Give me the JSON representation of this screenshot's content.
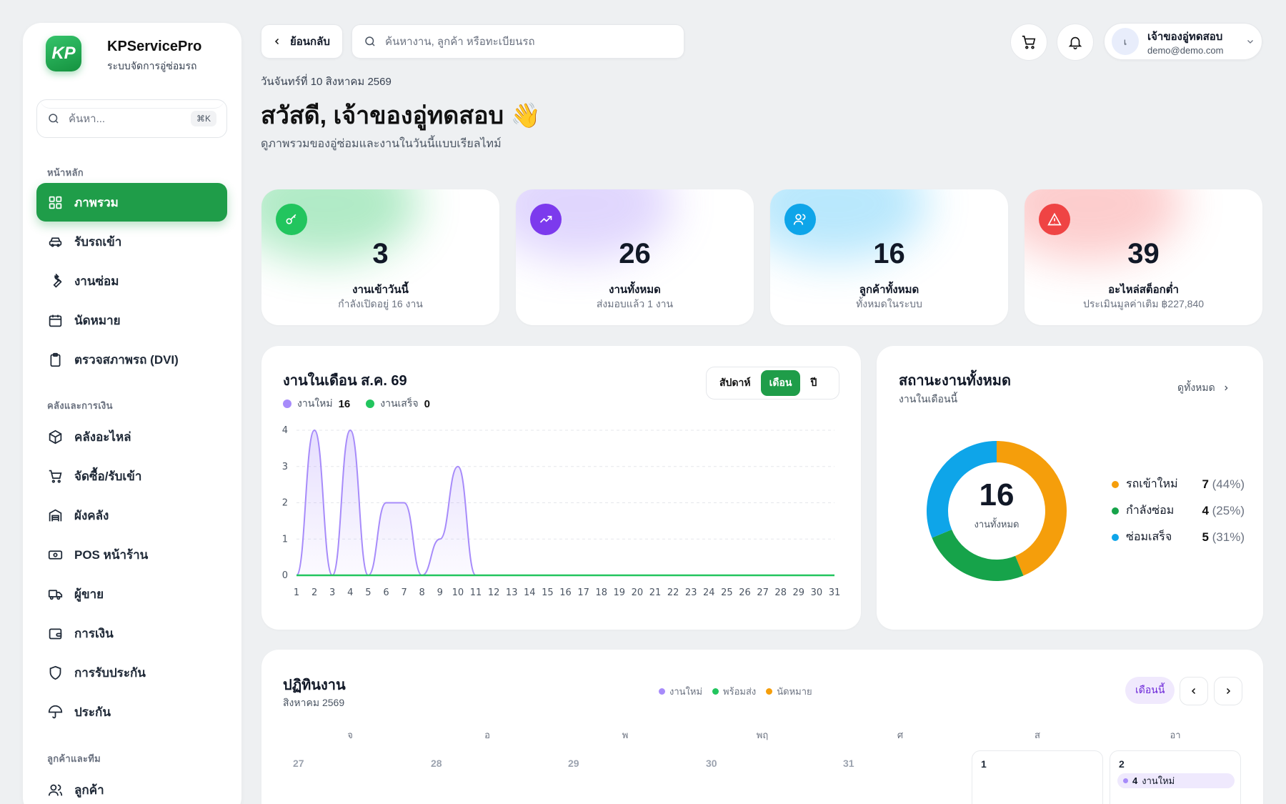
{
  "brand": {
    "name": "KPServicePro",
    "subtitle": "ระบบจัดการอู่ซ่อมรถ",
    "logo_text": "KP"
  },
  "sidebar": {
    "search_placeholder": "ค้นหา...",
    "search_shortcut": "⌘K",
    "sections": [
      "หน้าหลัก",
      "คลังและการเงิน",
      "ลูกค้าและทีม"
    ],
    "items": [
      {
        "label": "ภาพรวม",
        "icon": "grid-icon",
        "active": true
      },
      {
        "label": "รับรถเข้า",
        "icon": "car-icon"
      },
      {
        "label": "งานซ่อม",
        "icon": "wrench-icon"
      },
      {
        "label": "นัดหมาย",
        "icon": "calendar-icon"
      },
      {
        "label": "ตรวจสภาพรถ (DVI)",
        "icon": "clipboard-icon"
      },
      {
        "label": "คลังอะไหล่",
        "icon": "box-icon"
      },
      {
        "label": "จัดซื้อ/รับเข้า",
        "icon": "cart-icon"
      },
      {
        "label": "ผังคลัง",
        "icon": "warehouse-icon"
      },
      {
        "label": "POS หน้าร้าน",
        "icon": "cash-icon"
      },
      {
        "label": "ผู้ขาย",
        "icon": "truck-icon"
      },
      {
        "label": "การเงิน",
        "icon": "wallet-icon"
      },
      {
        "label": "การรับประกัน",
        "icon": "shield-icon"
      },
      {
        "label": "ประกัน",
        "icon": "umbrella-icon"
      },
      {
        "label": "ลูกค้า",
        "icon": "users-icon"
      }
    ]
  },
  "topbar": {
    "back_label": "ย้อนกลับ",
    "search_placeholder": "ค้นหางาน, ลูกค้า หรือทะเบียนรถ",
    "user_name": "เจ้าของอู่ทดสอบ",
    "user_email": "demo@demo.com",
    "avatar_initial": "เ"
  },
  "header": {
    "date": "วันจันทร์ที่ 10 สิงหาคม 2569",
    "greeting": "สวัสดี, เจ้าของอู่ทดสอบ",
    "wave": "👋",
    "subtitle": "ดูภาพรวมของอู่ซ่อมและงานในวันนี้แบบเรียลไทม์"
  },
  "stats": [
    {
      "value": "3",
      "label": "งานเข้าวันนี้",
      "sub": "กำลังเปิดอยู่ 16 งาน",
      "color": "#22c55e",
      "icon": "key-icon"
    },
    {
      "value": "26",
      "label": "งานทั้งหมด",
      "sub": "ส่งมอบแล้ว 1 งาน",
      "color": "#7c3aed",
      "icon": "trend-up-icon"
    },
    {
      "value": "16",
      "label": "ลูกค้าทั้งหมด",
      "sub": "ทั้งหมดในระบบ",
      "color": "#0ea5e9",
      "icon": "users-icon"
    },
    {
      "value": "39",
      "label": "อะไหล่สต็อกต่ำ",
      "sub": "ประเมินมูลค่าเติม ฿227,840",
      "color": "#ef4444",
      "icon": "alert-icon"
    }
  ],
  "jobs_chart": {
    "title": "งานในเดือน ส.ค. 69",
    "periods": [
      "สัปดาห์",
      "เดือน",
      "ปี"
    ],
    "active_period": "เดือน",
    "legend": [
      {
        "label": "งานใหม่",
        "total": "16",
        "color": "#a78bfa"
      },
      {
        "label": "งานเสร็จ",
        "total": "0",
        "color": "#22c55e"
      }
    ]
  },
  "chart_data": {
    "type": "area",
    "x": [
      1,
      2,
      3,
      4,
      5,
      6,
      7,
      8,
      9,
      10,
      11,
      12,
      13,
      14,
      15,
      16,
      17,
      18,
      19,
      20,
      21,
      22,
      23,
      24,
      25,
      26,
      27,
      28,
      29,
      30,
      31
    ],
    "series": [
      {
        "name": "งานใหม่",
        "values": [
          0,
          4,
          0,
          4,
          0,
          2,
          2,
          0,
          1,
          3,
          0,
          0,
          0,
          0,
          0,
          0,
          0,
          0,
          0,
          0,
          0,
          0,
          0,
          0,
          0,
          0,
          0,
          0,
          0,
          0,
          0
        ],
        "color": "#a78bfa"
      },
      {
        "name": "งานเสร็จ",
        "values": [
          0,
          0,
          0,
          0,
          0,
          0,
          0,
          0,
          0,
          0,
          0,
          0,
          0,
          0,
          0,
          0,
          0,
          0,
          0,
          0,
          0,
          0,
          0,
          0,
          0,
          0,
          0,
          0,
          0,
          0,
          0
        ],
        "color": "#22c55e"
      }
    ],
    "ylim": [
      0,
      4
    ],
    "yticks": [
      0,
      1,
      2,
      3,
      4
    ],
    "grid": true
  },
  "status": {
    "title": "สถานะงานทั้งหมด",
    "subtitle": "งานในเดือนนี้",
    "view_all": "ดูทั้งหมด",
    "total": "16",
    "total_label": "งานทั้งหมด",
    "items": [
      {
        "label": "รถเข้าใหม่",
        "count": "7",
        "pct": "(44%)",
        "value": 7,
        "color": "#f59e0b"
      },
      {
        "label": "กำลังซ่อม",
        "count": "4",
        "pct": "(25%)",
        "value": 4,
        "color": "#16a34a"
      },
      {
        "label": "ซ่อมเสร็จ",
        "count": "5",
        "pct": "(31%)",
        "value": 5,
        "color": "#0ea5e9"
      }
    ]
  },
  "calendar": {
    "title": "ปฏิทินงาน",
    "month": "สิงหาคม 2569",
    "legend": [
      {
        "label": "งานใหม่",
        "color": "#a78bfa"
      },
      {
        "label": "พร้อมส่ง",
        "color": "#22c55e"
      },
      {
        "label": "นัดหมาย",
        "color": "#f59e0b"
      }
    ],
    "this_month": "เดือนนี้",
    "weekdays": [
      "จ",
      "อ",
      "พ",
      "พฤ",
      "ศ",
      "ส",
      "อา"
    ],
    "days": [
      "27",
      "28",
      "29",
      "30",
      "31",
      "1",
      "2"
    ],
    "event": {
      "count": "4",
      "label": "งานใหม่"
    }
  }
}
